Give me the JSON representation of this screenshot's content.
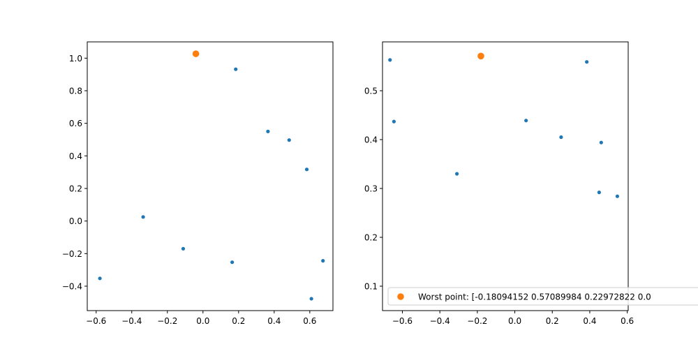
{
  "colors": {
    "series": "#1f77b4",
    "highlight": "#ff7f0e",
    "frame": "#000000",
    "background": "#ffffff"
  },
  "chart_data": [
    {
      "type": "scatter",
      "title": "",
      "xlabel": "",
      "ylabel": "",
      "xlim": [
        -0.65,
        0.73
      ],
      "ylim": [
        -0.55,
        1.1
      ],
      "xticks": [
        -0.6,
        -0.4,
        -0.2,
        0.0,
        0.2,
        0.4,
        0.6
      ],
      "xtick_labels": [
        "−0.6",
        "−0.4",
        "−0.2",
        "0.0",
        "0.2",
        "0.4",
        "0.6"
      ],
      "yticks": [
        -0.4,
        -0.2,
        0.0,
        0.2,
        0.4,
        0.6,
        0.8,
        1.0
      ],
      "ytick_labels": [
        "−0.4",
        "−0.2",
        "0.0",
        "0.2",
        "0.4",
        "0.6",
        "0.8",
        "1.0"
      ],
      "grid": false,
      "series": [
        {
          "color": "#1f77b4",
          "marker_size": "small",
          "points": [
            {
              "x": 0.184,
              "y": 0.932
            },
            {
              "x": 0.365,
              "y": 0.55
            },
            {
              "x": 0.484,
              "y": 0.497
            },
            {
              "x": 0.583,
              "y": 0.317
            },
            {
              "x": -0.336,
              "y": 0.025
            },
            {
              "x": -0.111,
              "y": -0.17
            },
            {
              "x": 0.164,
              "y": -0.253
            },
            {
              "x": 0.674,
              "y": -0.244
            },
            {
              "x": -0.579,
              "y": -0.352
            },
            {
              "x": 0.609,
              "y": -0.477
            }
          ]
        },
        {
          "color": "#ff7f0e",
          "marker_size": "large",
          "points": [
            {
              "x": -0.04,
              "y": 1.027
            }
          ]
        }
      ]
    },
    {
      "type": "scatter",
      "title": "",
      "xlabel": "",
      "ylabel": "",
      "xlim": [
        -0.706,
        0.605
      ],
      "ylim": [
        0.05,
        0.6
      ],
      "xticks": [
        -0.6,
        -0.4,
        -0.2,
        0.0,
        0.2,
        0.4,
        0.6
      ],
      "xtick_labels": [
        "−0.6",
        "−0.4",
        "−0.2",
        "0.0",
        "0.2",
        "0.4",
        "0.6"
      ],
      "yticks": [
        0.1,
        0.2,
        0.3,
        0.4,
        0.5
      ],
      "ytick_labels": [
        "0.1",
        "0.2",
        "0.3",
        "0.4",
        "0.5"
      ],
      "grid": false,
      "legend_position": "lower-left",
      "legend": [
        {
          "label": "Worst point: [-0.18094152  0.57089984  0.22972822  0.0",
          "color": "#ff7f0e"
        }
      ],
      "series": [
        {
          "color": "#1f77b4",
          "marker_size": "small",
          "points": [
            {
              "x": -0.666,
              "y": 0.563
            },
            {
              "x": -0.645,
              "y": 0.437
            },
            {
              "x": -0.309,
              "y": 0.33
            },
            {
              "x": 0.06,
              "y": 0.439
            },
            {
              "x": 0.247,
              "y": 0.405
            },
            {
              "x": 0.384,
              "y": 0.559
            },
            {
              "x": 0.461,
              "y": 0.394
            },
            {
              "x": 0.45,
              "y": 0.292
            },
            {
              "x": 0.547,
              "y": 0.284
            }
          ]
        },
        {
          "color": "#ff7f0e",
          "marker_size": "large",
          "points": [
            {
              "x": -0.181,
              "y": 0.571
            }
          ]
        }
      ]
    }
  ]
}
